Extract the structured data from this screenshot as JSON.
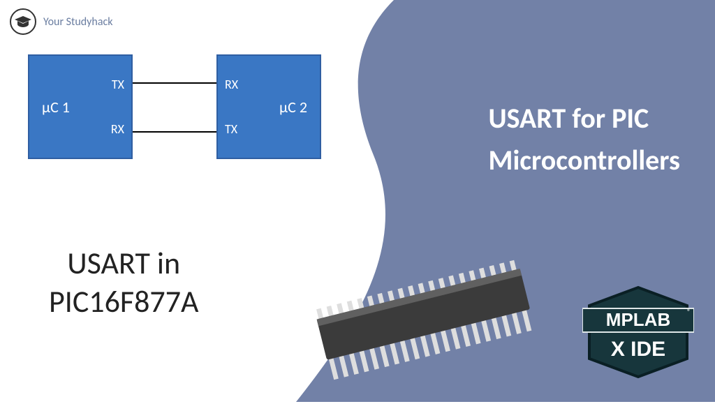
{
  "brand": {
    "name": "Your Studyhack",
    "text_color": "#6a7da0"
  },
  "background": {
    "left_color": "#ffffff",
    "right_color": "#7281a7"
  },
  "diagram": {
    "box_fill": "#3a77c4",
    "box_stroke": "#2f5ea2",
    "text_color": "#ffffff",
    "mc1_label": "µC 1",
    "mc2_label": "µC 2",
    "mc1_tx": "TX",
    "mc1_rx": "RX",
    "mc2_rx": "RX",
    "mc2_tx": "TX"
  },
  "left_title": {
    "line1": "USART in",
    "line2": "PIC16F877A",
    "color": "#222222",
    "fontsize": 44
  },
  "right_title": {
    "line1": "USART for PIC",
    "line2": "Microcontrollers",
    "color": "#ffffff",
    "fontsize": 40
  },
  "chip": {
    "body_color": "#3b3b3b",
    "highlight_color": "#606060",
    "pin_color": "#dedede",
    "pin_count_per_side": 20
  },
  "mplab": {
    "bg_color": "#17363c",
    "text_top": "MPLAB",
    "text_bottom": "X IDE",
    "text_color": "#ffffff"
  }
}
